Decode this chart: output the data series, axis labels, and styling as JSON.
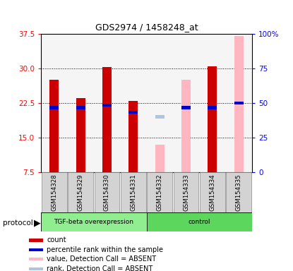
{
  "title": "GDS2974 / 1458248_at",
  "samples": [
    "GSM154328",
    "GSM154329",
    "GSM154330",
    "GSM154331",
    "GSM154332",
    "GSM154333",
    "GSM154334",
    "GSM154335"
  ],
  "count_values": [
    27.5,
    23.5,
    30.3,
    23.0,
    null,
    null,
    30.5,
    null
  ],
  "percentile_values": [
    21.5,
    21.5,
    22.0,
    20.5,
    null,
    21.5,
    21.5,
    22.5
  ],
  "absent_value_values": [
    null,
    null,
    null,
    null,
    13.5,
    27.5,
    null,
    37.0
  ],
  "absent_rank_values": [
    null,
    null,
    null,
    null,
    19.5,
    null,
    null,
    null
  ],
  "ylim_left": [
    7.5,
    37.5
  ],
  "ylim_right": [
    0,
    100
  ],
  "yticks_left": [
    7.5,
    15.0,
    22.5,
    30.0,
    37.5
  ],
  "yticks_right": [
    0,
    25,
    50,
    75,
    100
  ],
  "count_color": "#CC0000",
  "percentile_color": "#0000CC",
  "absent_value_color": "#FFB6C1",
  "absent_rank_color": "#B0C4DE",
  "plot_bg_color": "#F5F5F5",
  "sample_box_color": "#D3D3D3",
  "group1_label": "TGF-beta overexpression",
  "group2_label": "control",
  "group1_color": "#90EE90",
  "group2_color": "#5CD65C",
  "protocol_label": "protocol",
  "bar_width": 0.35,
  "legend_items": [
    {
      "label": "count",
      "color": "#CC0000"
    },
    {
      "label": "percentile rank within the sample",
      "color": "#0000CC"
    },
    {
      "label": "value, Detection Call = ABSENT",
      "color": "#FFB6C1"
    },
    {
      "label": "rank, Detection Call = ABSENT",
      "color": "#B0C4DE"
    }
  ]
}
